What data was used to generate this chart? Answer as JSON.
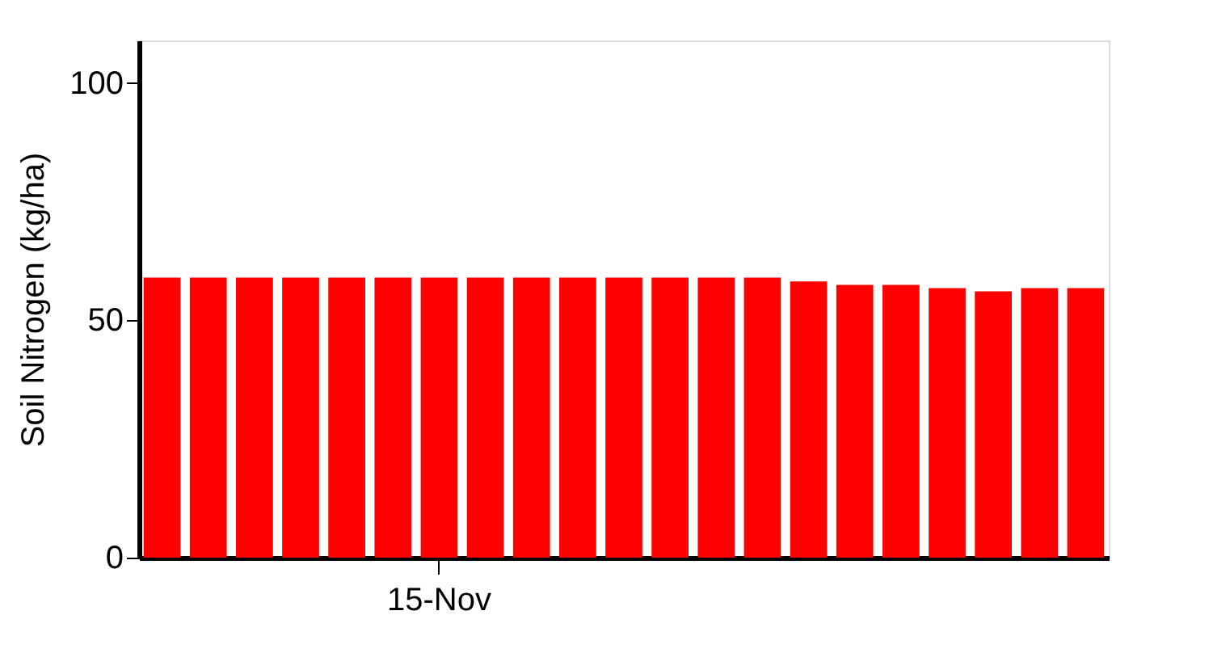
{
  "chart_data": {
    "type": "bar",
    "ylabel": "Soil Nitrogen (kg/ha)",
    "categories": [
      null,
      null,
      null,
      null,
      null,
      null,
      "15-Nov",
      null,
      null,
      null,
      null,
      null,
      null,
      null,
      null,
      null,
      null,
      null,
      null,
      null,
      null
    ],
    "values": [
      59,
      59,
      59,
      59,
      59,
      59,
      59,
      59,
      59,
      59,
      59,
      59,
      59,
      59,
      58.2,
      57.5,
      57.5,
      56.8,
      56.1,
      56.8,
      56.8
    ],
    "color": "#ff0000",
    "ylim": [
      0,
      109
    ],
    "yticks": [
      0,
      50,
      100
    ],
    "grid": false
  }
}
